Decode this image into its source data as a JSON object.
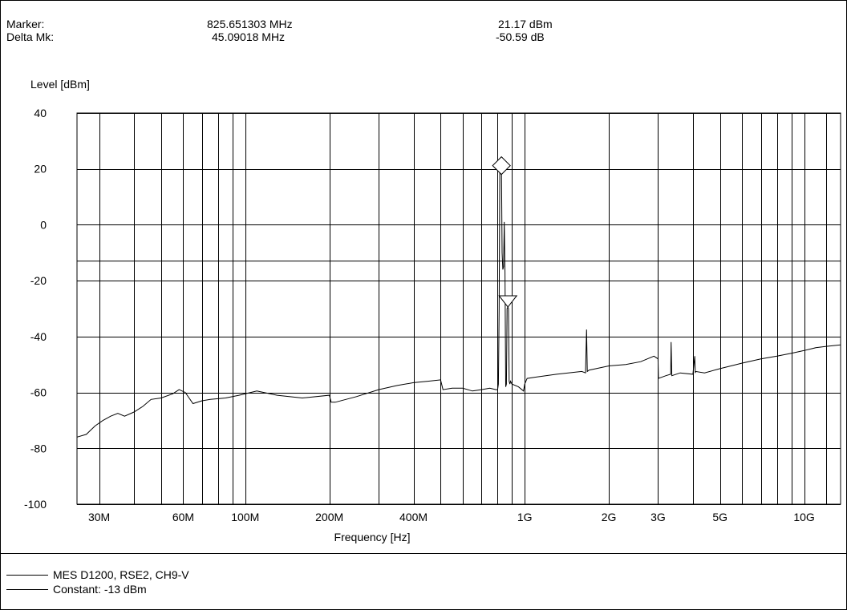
{
  "header": {
    "marker_label": "Marker:",
    "marker_freq": "825.651303 MHz",
    "marker_level": "21.17 dBm",
    "delta_label": "Delta Mk:",
    "delta_freq": "45.09018 MHz",
    "delta_level": "-50.59 dB"
  },
  "chart_data": {
    "type": "line",
    "x_scale": "log",
    "x_unit": "Hz",
    "xlim": [
      25000000,
      13500000000
    ],
    "ylim": [
      -100,
      40
    ],
    "ylabel": "Level [dBm]",
    "xlabel": "Frequency [Hz]",
    "y_ticks": [
      40,
      20,
      0,
      -20,
      -40,
      -60,
      -80,
      -100
    ],
    "x_tick_labels": [
      {
        "label": "30M",
        "value": 30000000
      },
      {
        "label": "60M",
        "value": 60000000
      },
      {
        "label": "100M",
        "value": 100000000
      },
      {
        "label": "200M",
        "value": 200000000
      },
      {
        "label": "400M",
        "value": 400000000
      },
      {
        "label": "1G",
        "value": 1000000000
      },
      {
        "label": "2G",
        "value": 2000000000
      },
      {
        "label": "3G",
        "value": 3000000000
      },
      {
        "label": "5G",
        "value": 5000000000
      },
      {
        "label": "10G",
        "value": 10000000000
      }
    ],
    "x_gridlines": [
      30000000,
      40000000,
      50000000,
      60000000,
      70000000,
      80000000,
      90000000,
      100000000,
      200000000,
      300000000,
      400000000,
      500000000,
      600000000,
      700000000,
      800000000,
      900000000,
      1000000000,
      2000000000,
      3000000000,
      4000000000,
      5000000000,
      6000000000,
      7000000000,
      8000000000,
      9000000000,
      10000000000,
      12000000000
    ],
    "grid": true,
    "series": [
      {
        "name": "MES  D1200, RSE2, CH9-V",
        "color": "#000000",
        "x": [
          25000000,
          27000000,
          29000000,
          31000000,
          33000000,
          35000000,
          37000000,
          40000000,
          43000000,
          46000000,
          50000000,
          55000000,
          58000000,
          61000000,
          65000000,
          70000000,
          75000000,
          85000000,
          95000000,
          110000000,
          130000000,
          160000000,
          200000000,
          203000000,
          210000000,
          250000000,
          300000000,
          350000000,
          400000000,
          450000000,
          500000000,
          510000000,
          550000000,
          600000000,
          650000000,
          700000000,
          750000000,
          790000000,
          800000000,
          805000000,
          810000000,
          815000000,
          820000000,
          825651303,
          830000000,
          835000000,
          840000000,
          845000000,
          850000000,
          855000000,
          860000000,
          865000000,
          870741483,
          875000000,
          880000000,
          885000000,
          890000000,
          900000000,
          950000000,
          990000000,
          1000000000,
          1020000000,
          1100000000,
          1300000000,
          1600000000,
          1650000000,
          1665000000,
          1675000000,
          1700000000,
          2000000000,
          2300000000,
          2600000000,
          2900000000,
          3000000000,
          3010000000,
          3200000000,
          3330000000,
          3340000000,
          3360000000,
          3600000000,
          4000000000,
          4060000000,
          4075000000,
          4090000000,
          4400000000,
          5000000000,
          6000000000,
          7000000000,
          8000000000,
          9000000000,
          10000000000,
          11000000000,
          12000000000,
          13500000000
        ],
        "y": [
          -76,
          -75,
          -72,
          -70,
          -68.5,
          -67.5,
          -68.5,
          -67,
          -65,
          -62.5,
          -62,
          -60.5,
          -59,
          -60,
          -64,
          -63,
          -62.5,
          -62,
          -61,
          -59.5,
          -61,
          -62,
          -61,
          -63.5,
          -63.5,
          -61.5,
          -59,
          -57.5,
          -56.5,
          -56,
          -55.5,
          -59,
          -58.5,
          -58.5,
          -59.5,
          -59,
          -58.5,
          -59,
          -59,
          -57,
          -30,
          22,
          24,
          21.17,
          -10,
          -16,
          -15,
          1,
          -17,
          -58,
          -57,
          -30,
          -29.42,
          -30,
          -56,
          -57,
          -56,
          -57,
          -58,
          -59.5,
          -57,
          -55,
          -54.5,
          -53.5,
          -52.5,
          -53,
          -37.5,
          -52.5,
          -52,
          -50.5,
          -50,
          -49,
          -47,
          -48,
          -55,
          -54,
          -53.5,
          -42,
          -54,
          -53,
          -53.5,
          -47,
          -53,
          -52.5,
          -53,
          -51.5,
          -49.5,
          -48,
          -47,
          -46,
          -45,
          -44,
          -43.5,
          -43
        ]
      },
      {
        "name": "Constant: -13 dBm",
        "color": "#000000",
        "x": [
          25000000,
          13500000000
        ],
        "y": [
          -13,
          -13
        ]
      }
    ],
    "markers": [
      {
        "type": "marker",
        "shape": "diamond",
        "x": 825651303,
        "y": 21.17
      },
      {
        "type": "delta",
        "shape": "triangle-down",
        "x": 870741483,
        "y": -29.42
      }
    ]
  },
  "legend": {
    "items": [
      {
        "label": "MES  D1200, RSE2, CH9-V"
      },
      {
        "label": "Constant: -13 dBm"
      }
    ]
  }
}
